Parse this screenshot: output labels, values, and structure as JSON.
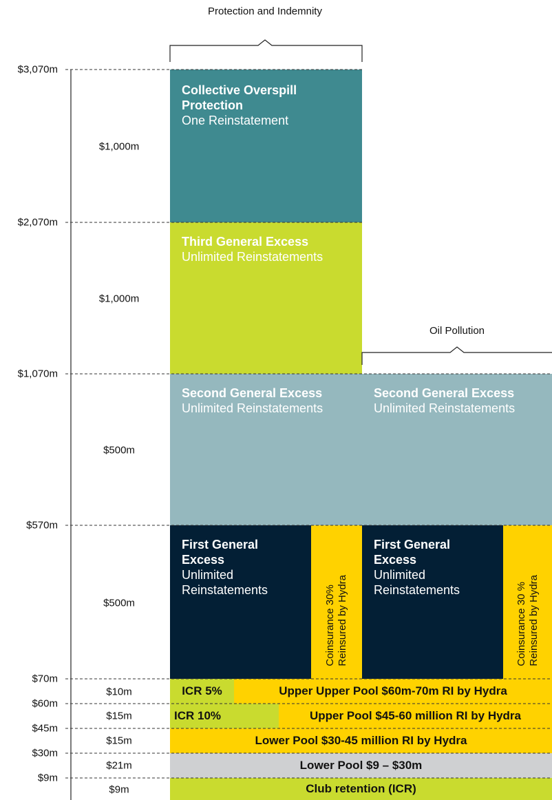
{
  "header": {
    "title": "Protection and Indemnity",
    "oil_title": "Oil Pollution"
  },
  "levels": [
    "$3,070m",
    "$2,070m",
    "$1,070m",
    "$570m",
    "$70m",
    "$60m",
    "$45m",
    "$30m",
    "$9m"
  ],
  "tiers": [
    "$1,000m",
    "$1,000m",
    "$500m",
    "$500m",
    "$10m",
    "$15m",
    "$15m",
    "$21m",
    "$9m"
  ],
  "blocks": {
    "collective_overspill": {
      "title": "Collective Overspill Protection",
      "subtitle": "One Reinstatement"
    },
    "third_general": {
      "title": "Third General Excess",
      "subtitle": "Unlimited Reinstatements"
    },
    "second_general_pi": {
      "title": "Second General Excess",
      "subtitle": "Unlimited Reinstatements"
    },
    "second_general_oil": {
      "title": "Second General Excess",
      "subtitle": "Unlimited Reinstatements"
    },
    "first_general_pi": {
      "title": "First General Excess",
      "subtitle": "Unlimited Reinstatements"
    },
    "coinsurance_pi": {
      "line1": "Coinsurance 30%",
      "line2": "Reinsured by Hydra"
    },
    "first_general_oil": {
      "title": "First General Excess",
      "subtitle": "Unlimited Reinstatements"
    },
    "coinsurance_oil": {
      "line1": "Coinsurance 30 %",
      "line2": "Reinsured by Hydra"
    },
    "icr_5": "ICR 5%",
    "upper_upper_pool": "Upper Upper Pool $60m-70m RI by Hydra",
    "icr_10": "ICR 10%",
    "upper_pool": "Upper Pool $45-60 million RI by Hydra",
    "lower_pool_30_45": "Lower Pool $30-45 million RI by Hydra",
    "lower_pool_9_30": "Lower Pool $9 – $30m",
    "club_retention": "Club retention (ICR)"
  }
}
